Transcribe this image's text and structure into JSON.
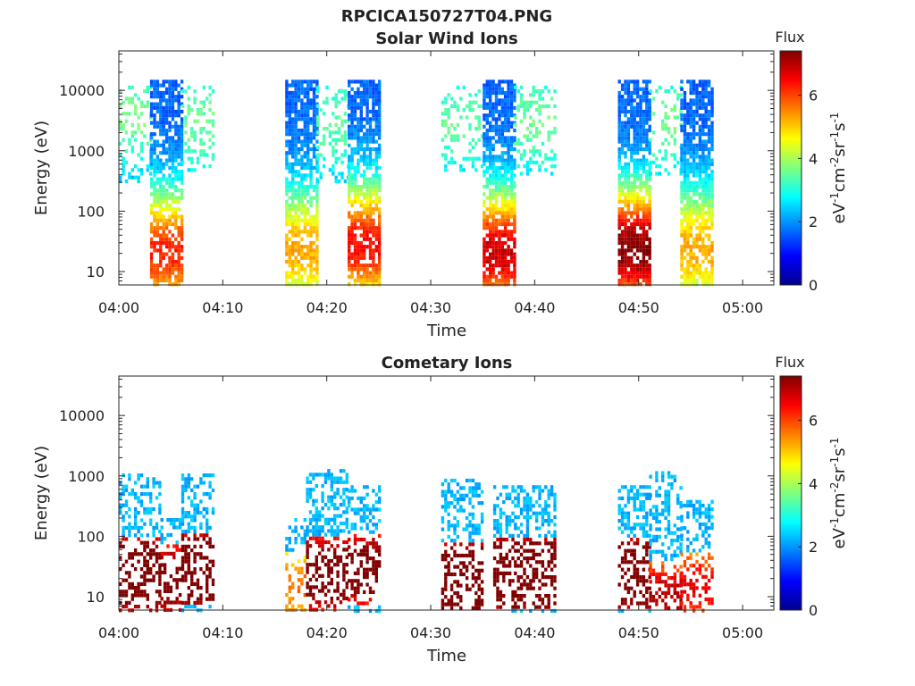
{
  "figure": {
    "title": "RPCICA150727T04.PNG"
  },
  "chart_data": [
    {
      "type": "heatmap",
      "title": "Solar Wind Ions",
      "xlabel": "Time",
      "ylabel": "Energy (eV)",
      "xlim": [
        "04:00",
        "05:03"
      ],
      "ylim": [
        6,
        45000
      ],
      "y_scale": "log",
      "x_ticks": [
        "04:00",
        "04:10",
        "04:20",
        "04:30",
        "04:40",
        "04:50",
        "05:00"
      ],
      "y_ticks": [
        "10",
        "100",
        "1000",
        "10000"
      ],
      "colorbar": {
        "label": "Flux",
        "unit": "eV-1cm-2sr-1s-1",
        "range": [
          0,
          7.4
        ],
        "ticks": [
          "0",
          "2",
          "4",
          "6"
        ]
      },
      "bursts": [
        {
          "start": "04:00",
          "end": "04:03",
          "e_min": 300,
          "e_max": 12000,
          "peak_energy": 4000,
          "peak_flux": 2.0,
          "density": 0.35
        },
        {
          "start": "04:03",
          "end": "04:06",
          "e_min": 6,
          "e_max": 15000,
          "peak_energy": 22,
          "peak_flux": 4.6,
          "density": 0.75
        },
        {
          "start": "04:06",
          "end": "04:09",
          "e_min": 500,
          "e_max": 12000,
          "peak_energy": 3000,
          "peak_flux": 1.9,
          "density": 0.3
        },
        {
          "start": "04:16",
          "end": "04:19",
          "e_min": 6,
          "e_max": 15000,
          "peak_energy": 25,
          "peak_flux": 3.6,
          "density": 0.8
        },
        {
          "start": "04:19",
          "end": "04:22",
          "e_min": 300,
          "e_max": 12000,
          "peak_energy": 3000,
          "peak_flux": 1.8,
          "density": 0.3
        },
        {
          "start": "04:22",
          "end": "04:25",
          "e_min": 6,
          "e_max": 15000,
          "peak_energy": 30,
          "peak_flux": 4.8,
          "density": 0.8
        },
        {
          "start": "04:31",
          "end": "04:35",
          "e_min": 500,
          "e_max": 12000,
          "peak_energy": 3000,
          "peak_flux": 1.8,
          "density": 0.28
        },
        {
          "start": "04:35",
          "end": "04:38",
          "e_min": 6,
          "e_max": 15000,
          "peak_energy": 22,
          "peak_flux": 5.2,
          "density": 0.8
        },
        {
          "start": "04:38",
          "end": "04:42",
          "e_min": 400,
          "e_max": 12000,
          "peak_energy": 3000,
          "peak_flux": 1.9,
          "density": 0.3
        },
        {
          "start": "04:48",
          "end": "04:51",
          "e_min": 6,
          "e_max": 15000,
          "peak_energy": 25,
          "peak_flux": 5.8,
          "density": 0.8
        },
        {
          "start": "04:51",
          "end": "04:54",
          "e_min": 400,
          "e_max": 12000,
          "peak_energy": 3000,
          "peak_flux": 1.9,
          "density": 0.3
        },
        {
          "start": "04:54",
          "end": "04:57",
          "e_min": 6,
          "e_max": 15000,
          "peak_energy": 25,
          "peak_flux": 3.6,
          "density": 0.8
        }
      ]
    },
    {
      "type": "heatmap",
      "title": "Cometary Ions",
      "xlabel": "Time",
      "ylabel": "Energy (eV)",
      "xlim": [
        "04:00",
        "05:03"
      ],
      "ylim": [
        6,
        45000
      ],
      "y_scale": "log",
      "x_ticks": [
        "04:00",
        "04:10",
        "04:20",
        "04:30",
        "04:40",
        "04:50",
        "05:00"
      ],
      "y_ticks": [
        "10",
        "100",
        "1000",
        "10000"
      ],
      "colorbar": {
        "label": "Flux",
        "unit": "eV-1cm-2sr-1s-1",
        "range": [
          0,
          7.4
        ],
        "ticks": [
          "0",
          "2",
          "4",
          "6"
        ]
      },
      "bursts": [
        {
          "start": "04:00",
          "end": "04:04",
          "e_min": 6,
          "e_max": 1100,
          "peak_energy": 25,
          "peak_flux": 7.0,
          "density": 0.45
        },
        {
          "start": "04:04",
          "end": "04:06",
          "e_min": 6,
          "e_max": 200,
          "peak_energy": 20,
          "peak_flux": 6.2,
          "density": 0.45
        },
        {
          "start": "04:06",
          "end": "04:09",
          "e_min": 6,
          "e_max": 1100,
          "peak_energy": 30,
          "peak_flux": 7.2,
          "density": 0.45
        },
        {
          "start": "04:16",
          "end": "04:18",
          "e_min": 6,
          "e_max": 200,
          "peak_energy": 15,
          "peak_flux": 4.0,
          "density": 0.3
        },
        {
          "start": "04:18",
          "end": "04:22",
          "e_min": 6,
          "e_max": 1300,
          "peak_energy": 25,
          "peak_flux": 6.6,
          "density": 0.45
        },
        {
          "start": "04:22",
          "end": "04:25",
          "e_min": 6,
          "e_max": 700,
          "peak_energy": 30,
          "peak_flux": 6.4,
          "density": 0.45
        },
        {
          "start": "04:31",
          "end": "04:35",
          "e_min": 6,
          "e_max": 900,
          "peak_energy": 20,
          "peak_flux": 7.3,
          "density": 0.45
        },
        {
          "start": "04:36",
          "end": "04:38",
          "e_min": 6,
          "e_max": 700,
          "peak_energy": 25,
          "peak_flux": 7.2,
          "density": 0.45
        },
        {
          "start": "04:38",
          "end": "04:42",
          "e_min": 6,
          "e_max": 700,
          "peak_energy": 25,
          "peak_flux": 7.3,
          "density": 0.45
        },
        {
          "start": "04:48",
          "end": "04:51",
          "e_min": 6,
          "e_max": 700,
          "peak_energy": 25,
          "peak_flux": 7.0,
          "density": 0.45
        },
        {
          "start": "04:51",
          "end": "04:54",
          "e_min": 6,
          "e_max": 1200,
          "peak_energy": 10,
          "peak_flux": 5.4,
          "density": 0.4
        },
        {
          "start": "04:54",
          "end": "04:57",
          "e_min": 6,
          "e_max": 400,
          "peak_energy": 15,
          "peak_flux": 5.0,
          "density": 0.4
        }
      ]
    }
  ]
}
